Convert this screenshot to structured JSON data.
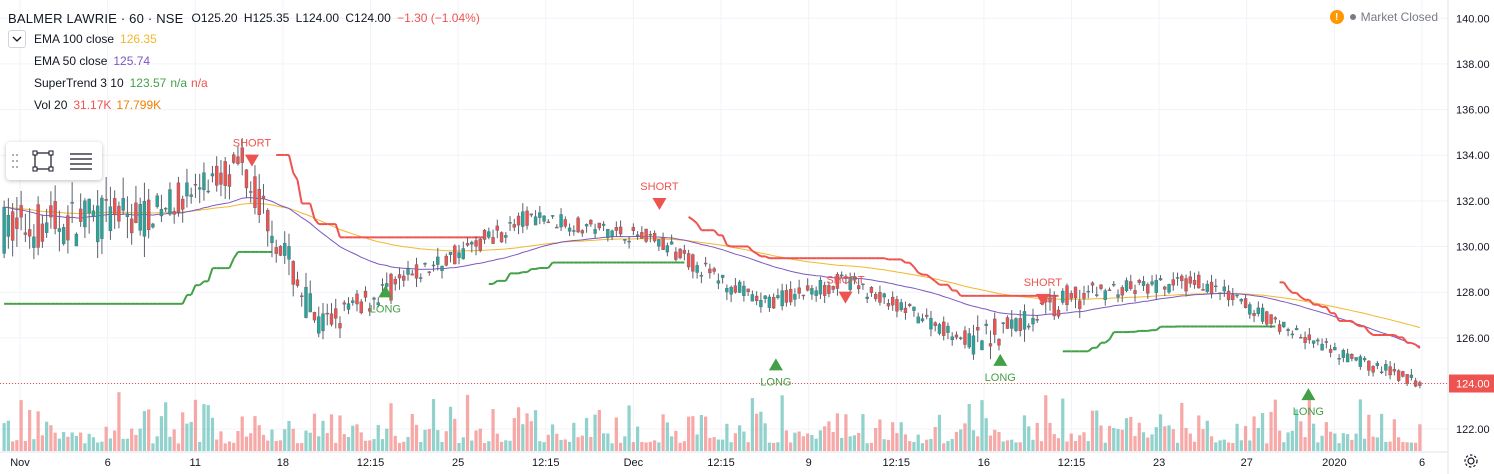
{
  "header": {
    "symbol_line": "BALMER LAWRIE · 60 · NSE",
    "open": "O125.20",
    "high": "H125.35",
    "low": "L124.00",
    "close": "C124.00",
    "change": "−1.30 (−1.04%)"
  },
  "indicators": [
    {
      "name": "EMA 100 close",
      "value": "126.35",
      "color": "#f2b72c"
    },
    {
      "name": "EMA 50 close",
      "value": "125.74",
      "color": "#7e57c2"
    },
    {
      "name": "SuperTrend 3 10",
      "value": "123.57",
      "value2": "n/a",
      "value3": "n/a",
      "color": "#43a047",
      "color2": "#ef5350"
    },
    {
      "name": "Vol 20",
      "value": "31.17K",
      "value2": "17.799K",
      "color": "#ef5350",
      "color2": "#f57c00"
    }
  ],
  "status": {
    "market": "Market Closed"
  },
  "colors": {
    "up": "#26a69a",
    "down": "#ef5350",
    "ema100": "#f2b72c",
    "ema50": "#7e57c2",
    "st_up": "#43a047",
    "st_down": "#ef5350",
    "grid": "#f0f3fa"
  },
  "chart_data": {
    "type": "candlestick",
    "title": "BALMER LAWRIE · 60 · NSE",
    "ylim": [
      121.0,
      140.8
    ],
    "y_ticks": [
      "122.00",
      "124.00",
      "126.00",
      "128.00",
      "130.00",
      "132.00",
      "134.00",
      "136.00",
      "138.00",
      "140.00"
    ],
    "last_price": "124.00",
    "x_ticks": [
      "Nov",
      "6",
      "11",
      "18",
      "12:15",
      "25",
      "12:15",
      "Dec",
      "12:15",
      "9",
      "12:15",
      "16",
      "12:15",
      "23",
      "27",
      "2020",
      "6"
    ],
    "segments": [
      {
        "bars": 34,
        "start": 130.8,
        "end": 131.4,
        "amp": 2.2
      },
      {
        "bars": 22,
        "start": 131.4,
        "end": 133.6,
        "amp": 1.4
      },
      {
        "bars": 18,
        "start": 133.6,
        "end": 126.5,
        "amp": 1.6
      },
      {
        "bars": 20,
        "start": 126.5,
        "end": 128.5,
        "amp": 1.2
      },
      {
        "bars": 30,
        "start": 128.5,
        "end": 131.3,
        "amp": 0.9
      },
      {
        "bars": 28,
        "start": 131.3,
        "end": 130.4,
        "amp": 0.7
      },
      {
        "bars": 26,
        "start": 130.4,
        "end": 127.5,
        "amp": 0.8
      },
      {
        "bars": 20,
        "start": 127.5,
        "end": 128.5,
        "amp": 0.8
      },
      {
        "bars": 30,
        "start": 128.5,
        "end": 125.8,
        "amp": 0.7
      },
      {
        "bars": 26,
        "start": 125.8,
        "end": 128.0,
        "amp": 1.3
      },
      {
        "bars": 28,
        "start": 128.0,
        "end": 128.4,
        "amp": 0.8
      },
      {
        "bars": 30,
        "start": 128.4,
        "end": 125.4,
        "amp": 0.7
      },
      {
        "bars": 22,
        "start": 125.4,
        "end": 124.0,
        "amp": 0.6
      }
    ],
    "signals": [
      {
        "type": "SHORT",
        "x": 0.176,
        "price": 133.5
      },
      {
        "type": "LONG",
        "x": 0.27,
        "price": 128.3
      },
      {
        "type": "SHORT",
        "x": 0.463,
        "price": 131.6
      },
      {
        "type": "LONG",
        "x": 0.545,
        "price": 125.1
      },
      {
        "type": "SHORT",
        "x": 0.594,
        "price": 127.5
      },
      {
        "type": "LONG",
        "x": 0.703,
        "price": 125.3
      },
      {
        "type": "SHORT",
        "x": 0.733,
        "price": 127.4
      },
      {
        "type": "LONG",
        "x": 0.92,
        "price": 123.8
      }
    ],
    "volume_max_label": "31.17K"
  }
}
